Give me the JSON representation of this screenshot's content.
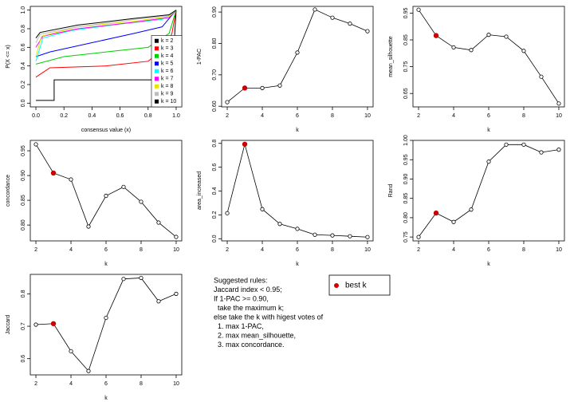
{
  "chart_data": [
    {
      "type": "line",
      "xlabel": "consensus value (x)",
      "ylabel": "P(X <= x)",
      "xlim": [
        -0.04,
        1.04
      ],
      "ylim": [
        -0.04,
        1.04
      ],
      "xticks": [
        {
          "value": 0,
          "label": "0.0"
        },
        {
          "value": 0.2,
          "label": "0.2"
        },
        {
          "value": 0.4,
          "label": "0.4"
        },
        {
          "value": 0.6,
          "label": "0.6"
        },
        {
          "value": 0.8,
          "label": "0.8"
        },
        {
          "value": 1,
          "label": "1.0"
        }
      ],
      "yticks": [
        {
          "value": 0,
          "label": "0.0"
        },
        {
          "value": 0.2,
          "label": "0.2"
        },
        {
          "value": 0.4,
          "label": "0.4"
        },
        {
          "value": 0.6,
          "label": "0.6"
        },
        {
          "value": 0.8,
          "label": "0.8"
        },
        {
          "value": 1,
          "label": "1.0"
        }
      ],
      "legend": "bottom-right",
      "series": [
        {
          "name": "k = 2",
          "color": "#000000",
          "x": [
            0,
            0.12,
            0.13,
            0.13,
            0.97,
            1.0
          ],
          "values": [
            0.03,
            0.03,
            0.03,
            0.25,
            0.25,
            1.0
          ]
        },
        {
          "name": "k = 3",
          "color": "#ff0000",
          "x": [
            0,
            0.1,
            0.5,
            0.8,
            0.93,
            0.97,
            1.0
          ],
          "values": [
            0.28,
            0.38,
            0.4,
            0.45,
            0.6,
            0.75,
            1.0
          ]
        },
        {
          "name": "k = 4",
          "color": "#00cd00",
          "x": [
            0,
            0.2,
            0.5,
            0.8,
            0.95,
            1.0
          ],
          "values": [
            0.42,
            0.5,
            0.55,
            0.6,
            0.75,
            1.0
          ]
        },
        {
          "name": "k = 5",
          "color": "#0000ff",
          "x": [
            0,
            0.1,
            0.4,
            0.7,
            0.9,
            1.0
          ],
          "values": [
            0.5,
            0.55,
            0.65,
            0.75,
            0.82,
            1.0
          ]
        },
        {
          "name": "k = 6",
          "color": "#00ffff",
          "x": [
            0,
            0.05,
            0.25,
            0.6,
            0.9,
            1.0
          ],
          "values": [
            0.45,
            0.7,
            0.78,
            0.85,
            0.9,
            1.0
          ]
        },
        {
          "name": "k = 7",
          "color": "#ff00ff",
          "x": [
            0,
            0.05,
            0.3,
            0.7,
            0.95,
            1.0
          ],
          "values": [
            0.6,
            0.72,
            0.8,
            0.87,
            0.92,
            1.0
          ]
        },
        {
          "name": "k = 8",
          "color": "#e6e600",
          "x": [
            0,
            0.04,
            0.3,
            0.7,
            0.95,
            1.0
          ],
          "values": [
            0.5,
            0.72,
            0.82,
            0.88,
            0.93,
            1.0
          ]
        },
        {
          "name": "k = 9",
          "color": "#bebebe",
          "x": [
            0,
            0.03,
            0.3,
            0.7,
            0.95,
            1.0
          ],
          "values": [
            0.65,
            0.74,
            0.82,
            0.9,
            0.94,
            1.0
          ]
        },
        {
          "name": "k = 10",
          "color": "#000000",
          "x": [
            0,
            0.03,
            0.3,
            0.7,
            0.95,
            1.0
          ],
          "values": [
            0.7,
            0.76,
            0.84,
            0.91,
            0.95,
            1.0
          ]
        }
      ]
    },
    {
      "type": "line",
      "markers": true,
      "xlabel": "k",
      "ylabel": "1-PAC",
      "xlim": [
        1.68,
        10.32
      ],
      "ylim": [
        0.598,
        0.918
      ],
      "xticks": [
        2,
        4,
        6,
        8,
        10
      ],
      "yticks": [
        {
          "value": 0.6,
          "label": "0.60"
        },
        {
          "value": 0.7,
          "label": "0.70"
        },
        {
          "value": 0.8,
          "label": "0.80"
        },
        {
          "value": 0.9,
          "label": "0.90"
        }
      ],
      "x": [
        2,
        3,
        4,
        5,
        6,
        7,
        8,
        9,
        10
      ],
      "values": [
        0.613,
        0.658,
        0.658,
        0.666,
        0.771,
        0.908,
        0.882,
        0.863,
        0.839
      ]
    },
    {
      "type": "line",
      "markers": true,
      "xlabel": "k",
      "ylabel": "mean_silhouette",
      "xlim": [
        1.68,
        10.32
      ],
      "ylim": [
        0.6,
        0.975
      ],
      "xticks": [
        2,
        4,
        6,
        8,
        10
      ],
      "yticks": [
        0.65,
        0.75,
        0.85,
        0.95
      ],
      "x": [
        2,
        3,
        4,
        5,
        6,
        7,
        8,
        9,
        10
      ],
      "values": [
        0.9625,
        0.866,
        0.822,
        0.812,
        0.869,
        0.862,
        0.809,
        0.7125,
        0.6125
      ]
    },
    {
      "type": "line",
      "markers": true,
      "xlabel": "k",
      "ylabel": "concordance",
      "xlim": [
        1.68,
        10.32
      ],
      "ylim": [
        0.768,
        0.971
      ],
      "xticks": [
        2,
        4,
        6,
        8,
        10
      ],
      "yticks": [
        {
          "value": 0.8,
          "label": "0.80"
        },
        0.85,
        {
          "value": 0.9,
          "label": "0.90"
        },
        0.95
      ],
      "x": [
        2,
        3,
        4,
        5,
        6,
        7,
        8,
        9,
        10
      ],
      "values": [
        0.963,
        0.905,
        0.892,
        0.797,
        0.859,
        0.877,
        0.847,
        0.805,
        0.776
      ]
    },
    {
      "type": "line",
      "markers": true,
      "xlabel": "k",
      "ylabel": "area_increased",
      "xlim": [
        1.68,
        10.32
      ],
      "ylim": [
        -0.018,
        0.825
      ],
      "xticks": [
        2,
        4,
        6,
        8,
        10
      ],
      "yticks": [
        {
          "value": 0,
          "label": "0.0"
        },
        {
          "value": 0.2,
          "label": "0.2"
        },
        {
          "value": 0.4,
          "label": "0.4"
        },
        {
          "value": 0.6,
          "label": "0.6"
        },
        {
          "value": 0.8,
          "label": "0.8"
        }
      ],
      "x": [
        2,
        3,
        4,
        5,
        6,
        7,
        8,
        9,
        10
      ],
      "values": [
        0.214,
        0.793,
        0.248,
        0.124,
        0.083,
        0.034,
        0.028,
        0.021,
        0.014
      ]
    },
    {
      "type": "line",
      "markers": true,
      "xlabel": "k",
      "ylabel": "Rand",
      "xlim": [
        1.68,
        10.32
      ],
      "ylim": [
        0.74,
        1.0
      ],
      "xticks": [
        2,
        4,
        6,
        8,
        10
      ],
      "yticks": [
        0.75,
        {
          "value": 0.8,
          "label": "0.80"
        },
        0.85,
        {
          "value": 0.9,
          "label": "0.90"
        },
        0.95,
        {
          "value": 1,
          "label": "1.00"
        }
      ],
      "x": [
        2,
        3,
        4,
        5,
        6,
        7,
        8,
        9,
        10
      ],
      "values": [
        0.75,
        0.812,
        0.789,
        0.821,
        0.945,
        0.989,
        0.989,
        0.969,
        0.976
      ]
    },
    {
      "type": "line",
      "markers": true,
      "xlabel": "k",
      "ylabel": "Jaccard",
      "xlim": [
        1.68,
        10.32
      ],
      "ylim": [
        0.55,
        0.86
      ],
      "xticks": [
        2,
        4,
        6,
        8,
        10
      ],
      "yticks": [
        0.6,
        0.7,
        0.8
      ],
      "x": [
        2,
        3,
        4,
        5,
        6,
        7,
        8,
        9,
        10
      ],
      "values": [
        0.705,
        0.708,
        0.623,
        0.562,
        0.726,
        0.846,
        0.849,
        0.777,
        0.8
      ]
    }
  ],
  "best_k": 3,
  "best_k_color": "#cc0000",
  "best_k_legend": "best k",
  "rules": [
    "Suggested rules:",
    "Jaccard index < 0.95;",
    "If 1-PAC >= 0.90,",
    "  take the maximum k;",
    "else take the k with higest votes of",
    "  1. max 1-PAC,",
    "  2. max mean_silhouette,",
    "  3. max concordance."
  ]
}
